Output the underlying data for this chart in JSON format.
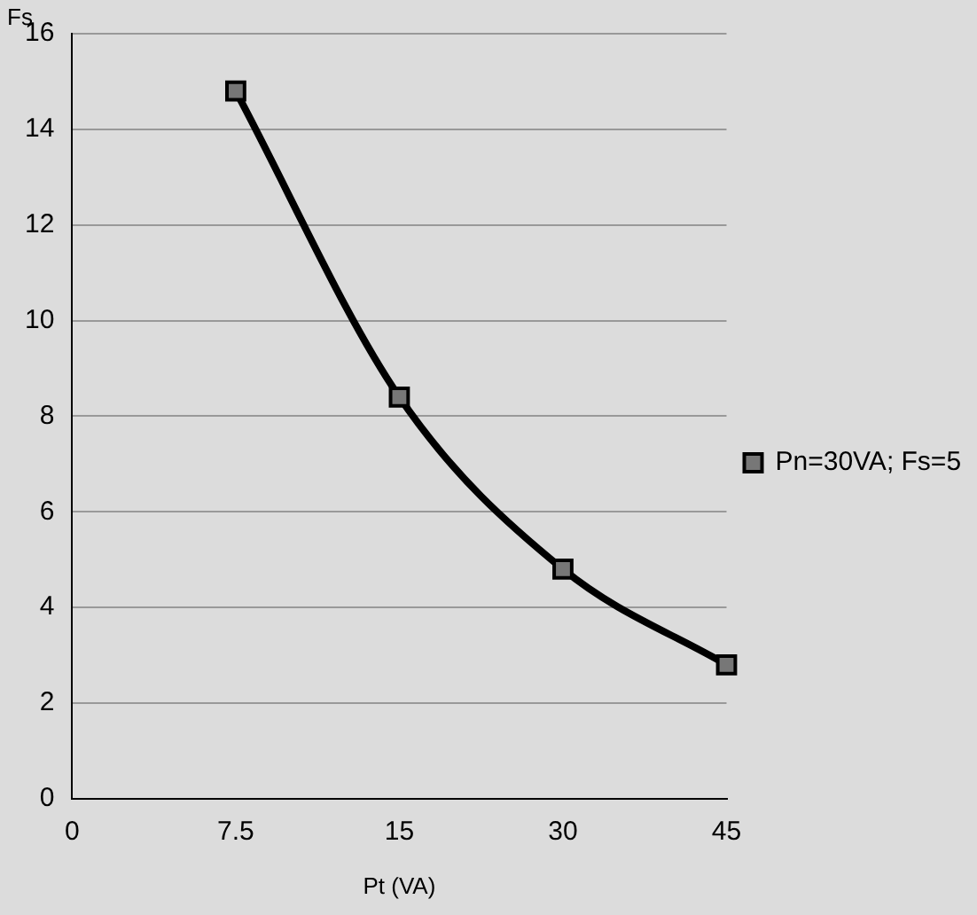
{
  "chart_data": {
    "type": "line",
    "xlabel": "Pt (VA)",
    "ylabel": "Fs",
    "categories": [
      "0",
      "7.5",
      "15",
      "30",
      "45"
    ],
    "series": [
      {
        "name": "Pn=30VA; Fs=5",
        "color": "#000000",
        "values": [
          null,
          14.8,
          8.4,
          4.8,
          2.8
        ]
      }
    ],
    "ylim": [
      0,
      16
    ],
    "yticks": [
      0,
      2,
      4,
      6,
      8,
      10,
      12,
      14,
      16
    ],
    "grid": "y",
    "legend": "right",
    "marker": "square",
    "line_style": "solid"
  }
}
